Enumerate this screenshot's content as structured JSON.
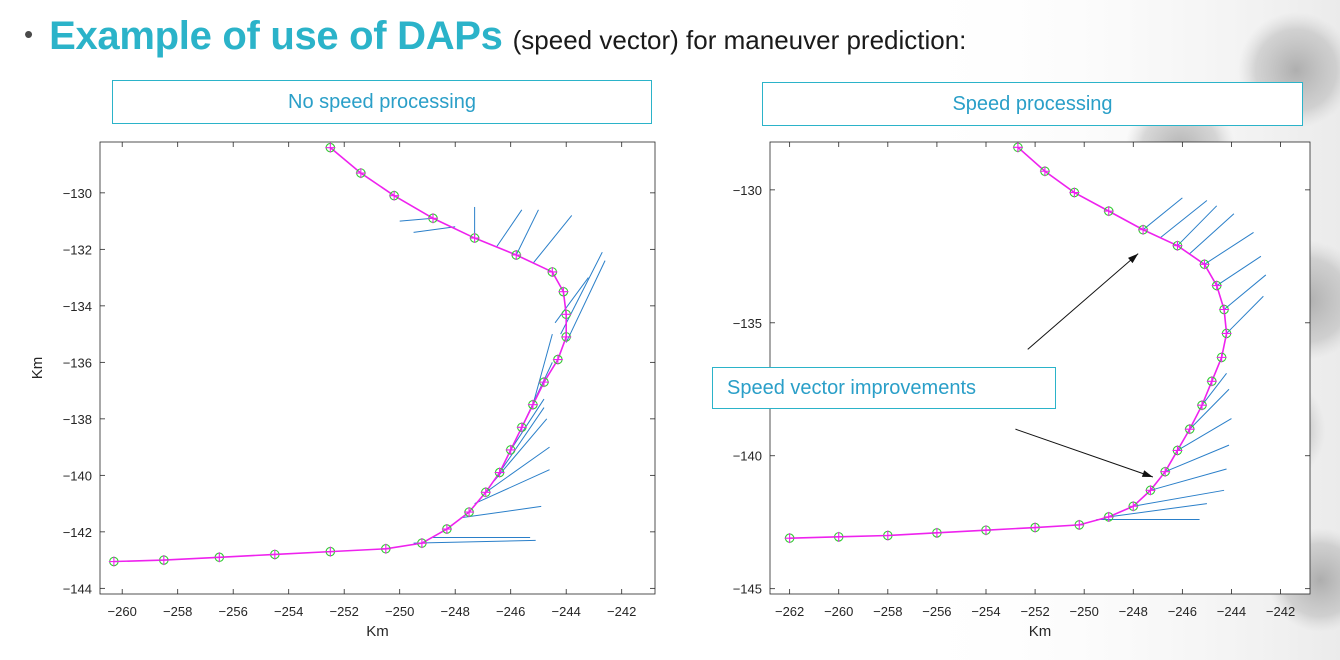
{
  "slide": {
    "bullet": "•",
    "title_main": "Example of use of DAPs",
    "title_sub": "(speed vector) for maneuver prediction:"
  },
  "colors": {
    "title": "#2bb3c9",
    "box_border": "#2bb3c9",
    "box_text": "#2a9fc8",
    "track_circle": "#33cc33",
    "track_plus": "#ee22ee",
    "speed_vector": "#2a7fc9",
    "arrow": "#111111"
  },
  "chart_data": [
    {
      "type": "scatter",
      "panel_label": "No speed processing",
      "xlabel": "Km",
      "ylabel": "Km",
      "xlim": [
        -260.8,
        -240.8
      ],
      "ylim": [
        -144.2,
        -128.2
      ],
      "xticks": [
        -260,
        -258,
        -256,
        -254,
        -252,
        -250,
        -248,
        -246,
        -244,
        -242
      ],
      "yticks": [
        -130,
        -132,
        -134,
        -136,
        -138,
        -140,
        -142,
        -144
      ],
      "grid": false,
      "series": [
        {
          "marker": "circle",
          "points": [
            [
              -252.5,
              -128.4
            ],
            [
              -251.4,
              -129.3
            ],
            [
              -250.2,
              -130.1
            ],
            [
              -248.8,
              -130.9
            ],
            [
              -247.3,
              -131.6
            ],
            [
              -245.8,
              -132.2
            ],
            [
              -244.5,
              -132.8
            ],
            [
              -244.1,
              -133.5
            ],
            [
              -244.0,
              -134.3
            ],
            [
              -244.0,
              -135.1
            ],
            [
              -244.3,
              -135.9
            ],
            [
              -244.8,
              -136.7
            ],
            [
              -245.2,
              -137.5
            ],
            [
              -245.6,
              -138.3
            ],
            [
              -246.0,
              -139.1
            ],
            [
              -246.4,
              -139.9
            ],
            [
              -246.9,
              -140.6
            ],
            [
              -247.5,
              -141.3
            ],
            [
              -248.3,
              -141.9
            ],
            [
              -249.2,
              -142.4
            ],
            [
              -250.5,
              -142.6
            ],
            [
              -252.5,
              -142.7
            ],
            [
              -254.5,
              -142.8
            ],
            [
              -256.5,
              -142.9
            ],
            [
              -258.5,
              -143.0
            ],
            [
              -260.3,
              -143.05
            ]
          ]
        },
        {
          "marker": "plus",
          "points": [
            [
              -252.5,
              -128.4
            ],
            [
              -251.4,
              -129.3
            ],
            [
              -250.2,
              -130.1
            ],
            [
              -248.8,
              -130.9
            ],
            [
              -247.3,
              -131.6
            ],
            [
              -245.8,
              -132.2
            ],
            [
              -244.5,
              -132.8
            ],
            [
              -244.1,
              -133.5
            ],
            [
              -244.0,
              -134.3
            ],
            [
              -244.0,
              -135.1
            ],
            [
              -244.3,
              -135.9
            ],
            [
              -244.8,
              -136.7
            ],
            [
              -245.2,
              -137.5
            ],
            [
              -245.6,
              -138.3
            ],
            [
              -246.0,
              -139.1
            ],
            [
              -246.4,
              -139.9
            ],
            [
              -246.9,
              -140.6
            ],
            [
              -247.5,
              -141.3
            ],
            [
              -248.3,
              -141.9
            ],
            [
              -249.2,
              -142.4
            ],
            [
              -250.5,
              -142.6
            ],
            [
              -252.5,
              -142.7
            ],
            [
              -254.5,
              -142.8
            ],
            [
              -256.5,
              -142.9
            ],
            [
              -258.5,
              -143.0
            ],
            [
              -260.3,
              -143.05
            ]
          ]
        }
      ],
      "speed_vectors": [
        [
          [
            -248.8,
            -130.9
          ],
          [
            -250.0,
            -131.0
          ]
        ],
        [
          [
            -248.0,
            -131.2
          ],
          [
            -249.5,
            -131.4
          ]
        ],
        [
          [
            -247.3,
            -131.6
          ],
          [
            -247.3,
            -130.5
          ]
        ],
        [
          [
            -246.5,
            -131.9
          ],
          [
            -245.6,
            -130.6
          ]
        ],
        [
          [
            -245.8,
            -132.2
          ],
          [
            -245.0,
            -130.6
          ]
        ],
        [
          [
            -245.2,
            -132.5
          ],
          [
            -243.8,
            -130.8
          ]
        ],
        [
          [
            -244.4,
            -134.6
          ],
          [
            -243.2,
            -133.0
          ]
        ],
        [
          [
            -244.2,
            -135.0
          ],
          [
            -242.7,
            -132.1
          ]
        ],
        [
          [
            -244.0,
            -135.3
          ],
          [
            -242.6,
            -132.4
          ]
        ],
        [
          [
            -245.2,
            -137.5
          ],
          [
            -244.5,
            -135.0
          ]
        ],
        [
          [
            -245.6,
            -138.3
          ],
          [
            -244.5,
            -136.0
          ]
        ],
        [
          [
            -246.0,
            -139.1
          ],
          [
            -244.8,
            -137.3
          ]
        ],
        [
          [
            -246.4,
            -139.9
          ],
          [
            -244.8,
            -137.6
          ]
        ],
        [
          [
            -246.6,
            -140.2
          ],
          [
            -244.7,
            -138.0
          ]
        ],
        [
          [
            -246.9,
            -140.6
          ],
          [
            -244.6,
            -139.0
          ]
        ],
        [
          [
            -247.3,
            -141.0
          ],
          [
            -244.6,
            -139.8
          ]
        ],
        [
          [
            -247.8,
            -141.5
          ],
          [
            -244.9,
            -141.1
          ]
        ],
        [
          [
            -248.8,
            -142.2
          ],
          [
            -245.3,
            -142.2
          ]
        ],
        [
          [
            -249.5,
            -142.4
          ],
          [
            -245.1,
            -142.3
          ]
        ]
      ]
    },
    {
      "type": "scatter",
      "panel_label": "Speed processing",
      "xlabel": "Km",
      "ylabel": "",
      "xlim": [
        -262.8,
        -240.8
      ],
      "ylim": [
        -145.2,
        -128.2
      ],
      "xticks": [
        -262,
        -260,
        -258,
        -256,
        -254,
        -252,
        -250,
        -248,
        -246,
        -244,
        -242
      ],
      "yticks": [
        -130,
        -135,
        -140,
        -145
      ],
      "grid": false,
      "annotation": "Speed vector improvements",
      "series": [
        {
          "marker": "circle",
          "points": [
            [
              -252.7,
              -128.4
            ],
            [
              -251.6,
              -129.3
            ],
            [
              -250.4,
              -130.1
            ],
            [
              -249.0,
              -130.8
            ],
            [
              -247.6,
              -131.5
            ],
            [
              -246.2,
              -132.1
            ],
            [
              -245.1,
              -132.8
            ],
            [
              -244.6,
              -133.6
            ],
            [
              -244.3,
              -134.5
            ],
            [
              -244.2,
              -135.4
            ],
            [
              -244.4,
              -136.3
            ],
            [
              -244.8,
              -137.2
            ],
            [
              -245.2,
              -138.1
            ],
            [
              -245.7,
              -139.0
            ],
            [
              -246.2,
              -139.8
            ],
            [
              -246.7,
              -140.6
            ],
            [
              -247.3,
              -141.3
            ],
            [
              -248.0,
              -141.9
            ],
            [
              -249.0,
              -142.3
            ],
            [
              -250.2,
              -142.6
            ],
            [
              -252.0,
              -142.7
            ],
            [
              -254.0,
              -142.8
            ],
            [
              -256.0,
              -142.9
            ],
            [
              -258.0,
              -143.0
            ],
            [
              -260.0,
              -143.05
            ],
            [
              -262.0,
              -143.1
            ]
          ]
        },
        {
          "marker": "plus",
          "points": [
            [
              -252.7,
              -128.4
            ],
            [
              -251.6,
              -129.3
            ],
            [
              -250.4,
              -130.1
            ],
            [
              -249.0,
              -130.8
            ],
            [
              -247.6,
              -131.5
            ],
            [
              -246.2,
              -132.1
            ],
            [
              -245.1,
              -132.8
            ],
            [
              -244.6,
              -133.6
            ],
            [
              -244.3,
              -134.5
            ],
            [
              -244.2,
              -135.4
            ],
            [
              -244.4,
              -136.3
            ],
            [
              -244.8,
              -137.2
            ],
            [
              -245.2,
              -138.1
            ],
            [
              -245.7,
              -139.0
            ],
            [
              -246.2,
              -139.8
            ],
            [
              -246.7,
              -140.6
            ],
            [
              -247.3,
              -141.3
            ],
            [
              -248.0,
              -141.9
            ],
            [
              -249.0,
              -142.3
            ],
            [
              -250.2,
              -142.6
            ],
            [
              -252.0,
              -142.7
            ],
            [
              -254.0,
              -142.8
            ],
            [
              -256.0,
              -142.9
            ],
            [
              -258.0,
              -143.0
            ],
            [
              -260.0,
              -143.05
            ],
            [
              -262.0,
              -143.1
            ]
          ]
        }
      ],
      "speed_vectors": [
        [
          [
            -247.6,
            -131.5
          ],
          [
            -246.0,
            -130.3
          ]
        ],
        [
          [
            -246.9,
            -131.8
          ],
          [
            -245.0,
            -130.4
          ]
        ],
        [
          [
            -246.2,
            -132.1
          ],
          [
            -244.6,
            -130.6
          ]
        ],
        [
          [
            -245.7,
            -132.4
          ],
          [
            -243.9,
            -130.9
          ]
        ],
        [
          [
            -245.1,
            -132.8
          ],
          [
            -243.1,
            -131.6
          ]
        ],
        [
          [
            -244.6,
            -133.6
          ],
          [
            -242.8,
            -132.5
          ]
        ],
        [
          [
            -244.3,
            -134.5
          ],
          [
            -242.6,
            -133.2
          ]
        ],
        [
          [
            -244.2,
            -135.4
          ],
          [
            -242.7,
            -134.0
          ]
        ],
        [
          [
            -245.2,
            -138.1
          ],
          [
            -244.2,
            -136.9
          ]
        ],
        [
          [
            -245.7,
            -139.0
          ],
          [
            -244.1,
            -137.5
          ]
        ],
        [
          [
            -246.2,
            -139.8
          ],
          [
            -244.0,
            -138.6
          ]
        ],
        [
          [
            -246.7,
            -140.6
          ],
          [
            -244.1,
            -139.6
          ]
        ],
        [
          [
            -247.3,
            -141.3
          ],
          [
            -244.2,
            -140.5
          ]
        ],
        [
          [
            -248.0,
            -141.9
          ],
          [
            -244.3,
            -141.3
          ]
        ],
        [
          [
            -249.0,
            -142.3
          ],
          [
            -245.0,
            -141.8
          ]
        ],
        [
          [
            -249.5,
            -142.4
          ],
          [
            -245.3,
            -142.4
          ]
        ]
      ],
      "arrows": [
        [
          [
            -252.3,
            -136.0
          ],
          [
            -247.8,
            -132.4
          ]
        ],
        [
          [
            -252.8,
            -139.0
          ],
          [
            -247.2,
            -140.8
          ]
        ]
      ]
    }
  ]
}
